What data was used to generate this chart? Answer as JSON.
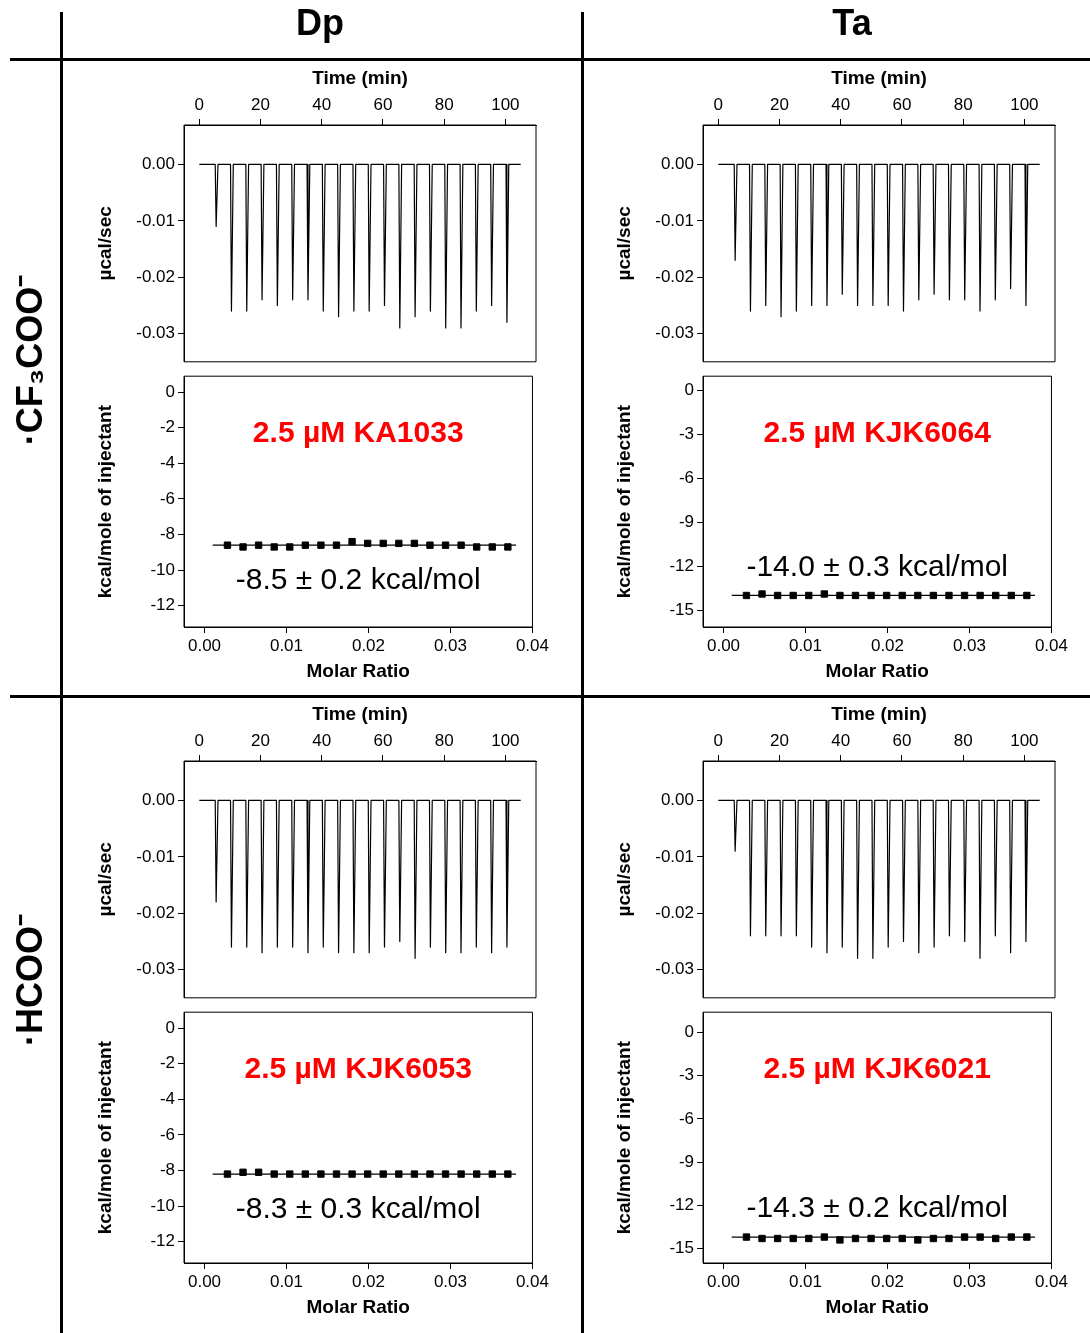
{
  "chart_data": [
    {
      "type": "other",
      "annotations": [
        "Dp",
        "Ta",
        "·CF₃COO⁻",
        "·HCOO⁻"
      ]
    },
    {
      "type": "line",
      "xlabel": "Time (min)",
      "ylabel": "µcal/sec",
      "xlim": [
        -5,
        110
      ],
      "xticks": [
        0,
        20,
        40,
        60,
        80,
        100
      ],
      "ylim": [
        -0.035,
        0.007
      ],
      "yticks": [
        {
          "value": 0,
          "label": "0.00"
        },
        {
          "value": -0.01,
          "label": "-0.01"
        },
        {
          "value": -0.02,
          "label": "-0.02"
        },
        {
          "value": -0.03,
          "label": "-0.03"
        }
      ],
      "legend": false,
      "series": [
        {
          "color": "#000000",
          "x": [
            0,
            5.2,
            5.5,
            6.1,
            10.2,
            10.5,
            11.1,
            15.2,
            15.5,
            16.1,
            20.2,
            20.5,
            21.1,
            25.2,
            25.5,
            26.1,
            30.2,
            30.5,
            31.1,
            35.2,
            35.5,
            36.1,
            40.2,
            40.5,
            41.1,
            45.2,
            45.5,
            46.1,
            50.2,
            50.5,
            51.1,
            55.2,
            55.5,
            56.1,
            60.2,
            60.5,
            61.1,
            65.2,
            65.5,
            66.1,
            70.2,
            70.5,
            71.1,
            75.2,
            75.5,
            76.1,
            80.2,
            80.5,
            81.1,
            85.2,
            85.5,
            86.1,
            90.2,
            90.5,
            91.1,
            95.2,
            95.5,
            96.1,
            100.2,
            100.5,
            101.1,
            105
          ],
          "values": [
            0,
            0,
            -0.011,
            0,
            0,
            -0.026,
            0,
            0,
            -0.026,
            0,
            0,
            -0.024,
            0,
            0,
            -0.025,
            0,
            0,
            -0.024,
            0,
            0,
            -0.024,
            0,
            0,
            -0.026,
            0,
            0,
            -0.027,
            0,
            0,
            -0.026,
            0,
            0,
            -0.026,
            0,
            0,
            -0.025,
            0,
            0,
            -0.029,
            0,
            0,
            -0.027,
            0,
            0,
            -0.026,
            0,
            0,
            -0.029,
            0,
            0,
            -0.029,
            0,
            0,
            -0.026,
            0,
            0,
            -0.025,
            0,
            0,
            -0.028,
            0,
            0
          ]
        }
      ]
    },
    {
      "type": "scatter",
      "xlabel": "Molar Ratio",
      "ylabel": "kcal/mole of injectant",
      "xlim": [
        -0.0025,
        0.04
      ],
      "xticks": [
        {
          "value": 0,
          "label": "0.00"
        },
        {
          "value": 0.01,
          "label": "0.01"
        },
        {
          "value": 0.02,
          "label": "0.02"
        },
        {
          "value": 0.03,
          "label": "0.03"
        },
        {
          "value": 0.04,
          "label": "0.04"
        }
      ],
      "ylim": [
        -13.2,
        0.9
      ],
      "yticks": [
        0,
        -2,
        -4,
        -6,
        -8,
        -10,
        -12
      ],
      "legend": false,
      "annotations": [
        "2.5 µM KA1033",
        "-8.5 ± 0.2 kcal/mol"
      ],
      "series": [
        {
          "type": "scatter",
          "marker": "square",
          "color": "#000000",
          "x": [
            0.0028,
            0.0047,
            0.0066,
            0.0085,
            0.0104,
            0.0123,
            0.0142,
            0.0161,
            0.018,
            0.0199,
            0.0218,
            0.0237,
            0.0256,
            0.0275,
            0.0294,
            0.0313,
            0.0332,
            0.0351,
            0.037
          ],
          "values": [
            -8.6,
            -8.7,
            -8.6,
            -8.7,
            -8.7,
            -8.6,
            -8.6,
            -8.6,
            -8.4,
            -8.5,
            -8.5,
            -8.5,
            -8.5,
            -8.6,
            -8.6,
            -8.6,
            -8.7,
            -8.7,
            -8.7
          ]
        },
        {
          "type": "line",
          "color": "#000000",
          "x": [
            0.001,
            0.038
          ],
          "values": [
            -8.6,
            -8.6
          ]
        }
      ]
    },
    {
      "type": "line",
      "xlabel": "Time (min)",
      "ylabel": "µcal/sec",
      "xlim": [
        -5,
        110
      ],
      "xticks": [
        0,
        20,
        40,
        60,
        80,
        100
      ],
      "ylim": [
        -0.035,
        0.007
      ],
      "yticks": [
        {
          "value": 0,
          "label": "0.00"
        },
        {
          "value": -0.01,
          "label": "-0.01"
        },
        {
          "value": -0.02,
          "label": "-0.02"
        },
        {
          "value": -0.03,
          "label": "-0.03"
        }
      ],
      "legend": false,
      "series": [
        {
          "color": "#000000",
          "x": [
            0,
            5.2,
            5.5,
            6.1,
            10.2,
            10.5,
            11.1,
            15.2,
            15.5,
            16.1,
            20.2,
            20.5,
            21.1,
            25.2,
            25.5,
            26.1,
            30.2,
            30.5,
            31.1,
            35.2,
            35.5,
            36.1,
            40.2,
            40.5,
            41.1,
            45.2,
            45.5,
            46.1,
            50.2,
            50.5,
            51.1,
            55.2,
            55.5,
            56.1,
            60.2,
            60.5,
            61.1,
            65.2,
            65.5,
            66.1,
            70.2,
            70.5,
            71.1,
            75.2,
            75.5,
            76.1,
            80.2,
            80.5,
            81.1,
            85.2,
            85.5,
            86.1,
            90.2,
            90.5,
            91.1,
            95.2,
            95.5,
            96.1,
            100.2,
            100.5,
            101.1,
            105
          ],
          "values": [
            0,
            0,
            -0.017,
            0,
            0,
            -0.026,
            0,
            0,
            -0.025,
            0,
            0,
            -0.027,
            0,
            0,
            -0.026,
            0,
            0,
            -0.025,
            0,
            0,
            -0.025,
            0,
            0,
            -0.023,
            0,
            0,
            -0.025,
            0,
            0,
            -0.025,
            0,
            0,
            -0.025,
            0,
            0,
            -0.026,
            0,
            0,
            -0.024,
            0,
            0,
            -0.023,
            0,
            0,
            -0.024,
            0,
            0,
            -0.024,
            0,
            0,
            -0.026,
            0,
            0,
            -0.024,
            0,
            0,
            -0.022,
            0,
            0,
            -0.025,
            0,
            0
          ]
        }
      ]
    },
    {
      "type": "scatter",
      "xlabel": "Molar Ratio",
      "ylabel": "kcal/mole of injectant",
      "xlim": [
        -0.0025,
        0.04
      ],
      "xticks": [
        {
          "value": 0,
          "label": "0.00"
        },
        {
          "value": 0.01,
          "label": "0.01"
        },
        {
          "value": 0.02,
          "label": "0.02"
        },
        {
          "value": 0.03,
          "label": "0.03"
        },
        {
          "value": 0.04,
          "label": "0.04"
        }
      ],
      "ylim": [
        -16.15,
        0.95
      ],
      "yticks": [
        0,
        -3,
        -6,
        -9,
        -12,
        -15
      ],
      "legend": false,
      "annotations": [
        "2.5 µM KJK6064",
        "-14.0 ± 0.3 kcal/mol"
      ],
      "series": [
        {
          "type": "scatter",
          "marker": "square",
          "color": "#000000",
          "x": [
            0.0028,
            0.0047,
            0.0066,
            0.0085,
            0.0104,
            0.0123,
            0.0142,
            0.0161,
            0.018,
            0.0199,
            0.0218,
            0.0237,
            0.0256,
            0.0275,
            0.0294,
            0.0313,
            0.0332,
            0.0351,
            0.037
          ],
          "values": [
            -14,
            -13.9,
            -14,
            -14,
            -14,
            -13.9,
            -14,
            -14,
            -14,
            -14,
            -14,
            -14,
            -14,
            -14,
            -14,
            -14,
            -14,
            -14,
            -14
          ]
        },
        {
          "type": "line",
          "color": "#000000",
          "x": [
            0.001,
            0.038
          ],
          "values": [
            -14,
            -14
          ]
        }
      ]
    },
    {
      "type": "line",
      "xlabel": "Time (min)",
      "ylabel": "µcal/sec",
      "xlim": [
        -5,
        110
      ],
      "xticks": [
        0,
        20,
        40,
        60,
        80,
        100
      ],
      "ylim": [
        -0.035,
        0.007
      ],
      "yticks": [
        {
          "value": 0,
          "label": "0.00"
        },
        {
          "value": -0.01,
          "label": "-0.01"
        },
        {
          "value": -0.02,
          "label": "-0.02"
        },
        {
          "value": -0.03,
          "label": "-0.03"
        }
      ],
      "legend": false,
      "series": [
        {
          "color": "#000000",
          "x": [
            0,
            5.2,
            5.5,
            6.1,
            10.2,
            10.5,
            11.1,
            15.2,
            15.5,
            16.1,
            20.2,
            20.5,
            21.1,
            25.2,
            25.5,
            26.1,
            30.2,
            30.5,
            31.1,
            35.2,
            35.5,
            36.1,
            40.2,
            40.5,
            41.1,
            45.2,
            45.5,
            46.1,
            50.2,
            50.5,
            51.1,
            55.2,
            55.5,
            56.1,
            60.2,
            60.5,
            61.1,
            65.2,
            65.5,
            66.1,
            70.2,
            70.5,
            71.1,
            75.2,
            75.5,
            76.1,
            80.2,
            80.5,
            81.1,
            85.2,
            85.5,
            86.1,
            90.2,
            90.5,
            91.1,
            95.2,
            95.5,
            96.1,
            100.2,
            100.5,
            101.1,
            105
          ],
          "values": [
            0,
            0,
            -0.018,
            0,
            0,
            -0.026,
            0,
            0,
            -0.026,
            0,
            0,
            -0.027,
            0,
            0,
            -0.026,
            0,
            0,
            -0.026,
            0,
            0,
            -0.027,
            0,
            0,
            -0.026,
            0,
            0,
            -0.027,
            0,
            0,
            -0.027,
            0,
            0,
            -0.027,
            0,
            0,
            -0.026,
            0,
            0,
            -0.025,
            0,
            0,
            -0.028,
            0,
            0,
            -0.026,
            0,
            0,
            -0.027,
            0,
            0,
            -0.027,
            0,
            0,
            -0.026,
            0,
            0,
            -0.027,
            0,
            0,
            -0.026,
            0,
            0
          ]
        }
      ]
    },
    {
      "type": "scatter",
      "xlabel": "Molar Ratio",
      "ylabel": "kcal/mole of injectant",
      "xlim": [
        -0.0025,
        0.04
      ],
      "xticks": [
        {
          "value": 0,
          "label": "0.00"
        },
        {
          "value": 0.01,
          "label": "0.01"
        },
        {
          "value": 0.02,
          "label": "0.02"
        },
        {
          "value": 0.03,
          "label": "0.03"
        },
        {
          "value": 0.04,
          "label": "0.04"
        }
      ],
      "ylim": [
        -13.2,
        0.9
      ],
      "yticks": [
        0,
        -2,
        -4,
        -6,
        -8,
        -10,
        -12
      ],
      "legend": false,
      "annotations": [
        "2.5 µM KJK6053",
        "-8.3 ± 0.3 kcal/mol"
      ],
      "series": [
        {
          "type": "scatter",
          "marker": "square",
          "color": "#000000",
          "x": [
            0.0028,
            0.0047,
            0.0066,
            0.0085,
            0.0104,
            0.0123,
            0.0142,
            0.0161,
            0.018,
            0.0199,
            0.0218,
            0.0237,
            0.0256,
            0.0275,
            0.0294,
            0.0313,
            0.0332,
            0.0351,
            0.037
          ],
          "values": [
            -8.2,
            -8.1,
            -8.1,
            -8.2,
            -8.2,
            -8.2,
            -8.2,
            -8.2,
            -8.2,
            -8.2,
            -8.2,
            -8.2,
            -8.2,
            -8.2,
            -8.2,
            -8.2,
            -8.2,
            -8.2,
            -8.2
          ]
        },
        {
          "type": "line",
          "color": "#000000",
          "x": [
            0.001,
            0.038
          ],
          "values": [
            -8.2,
            -8.2
          ]
        }
      ]
    },
    {
      "type": "line",
      "xlabel": "Time (min)",
      "ylabel": "µcal/sec",
      "xlim": [
        -5,
        110
      ],
      "xticks": [
        0,
        20,
        40,
        60,
        80,
        100
      ],
      "ylim": [
        -0.035,
        0.007
      ],
      "yticks": [
        {
          "value": 0,
          "label": "0.00"
        },
        {
          "value": -0.01,
          "label": "-0.01"
        },
        {
          "value": -0.02,
          "label": "-0.02"
        },
        {
          "value": -0.03,
          "label": "-0.03"
        }
      ],
      "legend": false,
      "series": [
        {
          "color": "#000000",
          "x": [
            0,
            5.2,
            5.5,
            6.1,
            10.2,
            10.5,
            11.1,
            15.2,
            15.5,
            16.1,
            20.2,
            20.5,
            21.1,
            25.2,
            25.5,
            26.1,
            30.2,
            30.5,
            31.1,
            35.2,
            35.5,
            36.1,
            40.2,
            40.5,
            41.1,
            45.2,
            45.5,
            46.1,
            50.2,
            50.5,
            51.1,
            55.2,
            55.5,
            56.1,
            60.2,
            60.5,
            61.1,
            65.2,
            65.5,
            66.1,
            70.2,
            70.5,
            71.1,
            75.2,
            75.5,
            76.1,
            80.2,
            80.5,
            81.1,
            85.2,
            85.5,
            86.1,
            90.2,
            90.5,
            91.1,
            95.2,
            95.5,
            96.1,
            100.2,
            100.5,
            101.1,
            105
          ],
          "values": [
            0,
            0,
            -0.009,
            0,
            0,
            -0.024,
            0,
            0,
            -0.024,
            0,
            0,
            -0.024,
            0,
            0,
            -0.024,
            0,
            0,
            -0.026,
            0,
            0,
            -0.027,
            0,
            0,
            -0.026,
            0,
            0,
            -0.028,
            0,
            0,
            -0.028,
            0,
            0,
            -0.026,
            0,
            0,
            -0.025,
            0,
            0,
            -0.027,
            0,
            0,
            -0.026,
            0,
            0,
            -0.024,
            0,
            0,
            -0.025,
            0,
            0,
            -0.028,
            0,
            0,
            -0.024,
            0,
            0,
            -0.027,
            0,
            0,
            -0.025,
            0,
            0
          ]
        }
      ]
    },
    {
      "type": "scatter",
      "xlabel": "Molar Ratio",
      "ylabel": "kcal/mole of injectant",
      "xlim": [
        -0.0025,
        0.04
      ],
      "xticks": [
        {
          "value": 0,
          "label": "0.00"
        },
        {
          "value": 0.01,
          "label": "0.01"
        },
        {
          "value": 0.02,
          "label": "0.02"
        },
        {
          "value": 0.03,
          "label": "0.03"
        },
        {
          "value": 0.04,
          "label": "0.04"
        }
      ],
      "ylim": [
        -16,
        1.4
      ],
      "yticks": [
        0,
        -3,
        -6,
        -9,
        -12,
        -15
      ],
      "legend": false,
      "annotations": [
        "2.5 µM KJK6021",
        "-14.3 ± 0.2 kcal/mol"
      ],
      "series": [
        {
          "type": "scatter",
          "marker": "square",
          "color": "#000000",
          "x": [
            0.0028,
            0.0047,
            0.0066,
            0.0085,
            0.0104,
            0.0123,
            0.0142,
            0.0161,
            0.018,
            0.0199,
            0.0218,
            0.0237,
            0.0256,
            0.0275,
            0.0294,
            0.0313,
            0.0332,
            0.0351,
            0.037
          ],
          "values": [
            -14.2,
            -14.3,
            -14.3,
            -14.3,
            -14.3,
            -14.2,
            -14.4,
            -14.3,
            -14.3,
            -14.3,
            -14.3,
            -14.4,
            -14.3,
            -14.3,
            -14.2,
            -14.2,
            -14.3,
            -14.2,
            -14.2
          ]
        },
        {
          "type": "line",
          "color": "#000000",
          "x": [
            0.001,
            0.038
          ],
          "values": [
            -14.2,
            -14.2
          ]
        }
      ]
    }
  ]
}
